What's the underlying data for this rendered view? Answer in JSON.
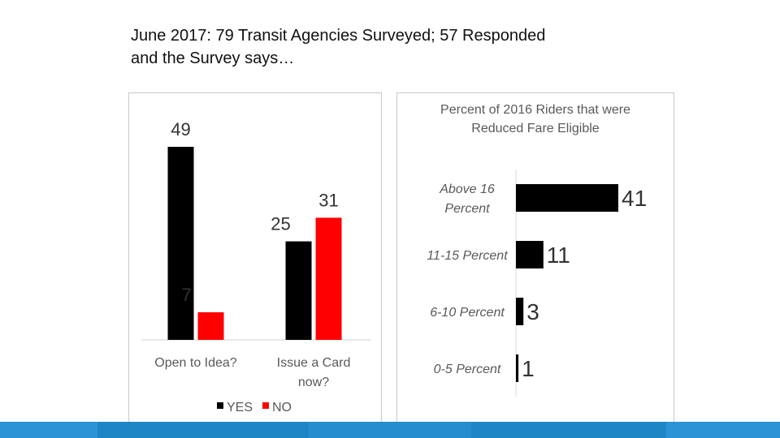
{
  "title": {
    "line1": "June 2017: 79 Transit Agencies Surveyed; 57 Responded",
    "line2": "and the Survey says…"
  },
  "chart_data": [
    {
      "type": "bar",
      "categories": [
        "Open to Idea?",
        "Issue a Card now?"
      ],
      "category_lines": [
        [
          "Open to Idea?"
        ],
        [
          "Issue a Card",
          "now?"
        ]
      ],
      "series": [
        {
          "name": "YES",
          "values": [
            49,
            25
          ],
          "color": "#000000"
        },
        {
          "name": "NO",
          "values": [
            7,
            31
          ],
          "color": "#ff0000"
        }
      ],
      "ylim": [
        0,
        49
      ],
      "legend": "bottom",
      "grid": false
    },
    {
      "type": "bar",
      "orientation": "horizontal",
      "title_lines": [
        "Percent of 2016 Riders that were",
        "Reduced Fare Eligible"
      ],
      "categories": [
        "Above 16 Percent",
        "11-15 Percent",
        "6-10 Percent",
        "0-5 Percent"
      ],
      "category_lines": [
        [
          "Above 16",
          "Percent"
        ],
        [
          "11-15 Percent"
        ],
        [
          "6-10 Percent"
        ],
        [
          "0-5 Percent"
        ]
      ],
      "values": [
        41,
        11,
        3,
        1
      ],
      "xlim": [
        0,
        41
      ],
      "bar_color": "#000000",
      "grid": false
    }
  ],
  "colors": {
    "yes": "#000000",
    "no": "#ff0000",
    "accent_band": "#1f86c6"
  }
}
